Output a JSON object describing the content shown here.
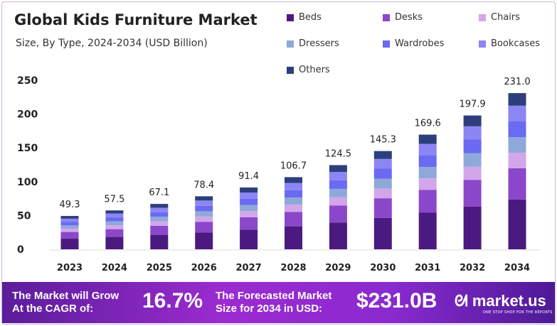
{
  "chart_data": {
    "type": "bar",
    "stacked": true,
    "title": "Global Kids Furniture Market",
    "subtitle": "Size, By Type, 2024-2034 (USD Billion)",
    "categories": [
      "2023",
      "2024",
      "2025",
      "2026",
      "2027",
      "2028",
      "2029",
      "2030",
      "2031",
      "2032",
      "2034"
    ],
    "totals": [
      "49.3",
      "57.5",
      "67.1",
      "78.4",
      "91.4",
      "106.7",
      "124.5",
      "145.3",
      "169.6",
      "197.9",
      "231.0"
    ],
    "ylim": [
      0,
      250
    ],
    "yticks": [
      0,
      50,
      100,
      150,
      200,
      250
    ],
    "grid": false,
    "legend_position": "top-right",
    "series": [
      {
        "name": "Beds",
        "color": "#4b1a80",
        "values": [
          15.7,
          18.3,
          21.4,
          25.0,
          29.2,
          34.0,
          39.7,
          46.4,
          54.1,
          63.1,
          73.7
        ]
      },
      {
        "name": "Desks",
        "color": "#8b47c9",
        "values": [
          9.9,
          11.5,
          13.4,
          15.7,
          18.3,
          21.3,
          24.9,
          29.1,
          33.9,
          39.6,
          46.2
        ]
      },
      {
        "name": "Chairs",
        "color": "#d3a6ea",
        "values": [
          4.9,
          5.7,
          6.6,
          7.8,
          9.0,
          10.6,
          12.3,
          14.4,
          16.8,
          19.6,
          22.9
        ]
      },
      {
        "name": "Dressers",
        "color": "#8ea9d9",
        "values": [
          4.9,
          5.8,
          6.7,
          7.8,
          9.1,
          10.7,
          12.5,
          14.5,
          17.0,
          19.8,
          23.1
        ]
      },
      {
        "name": "Wardrobes",
        "color": "#6a6af2",
        "values": [
          5.0,
          5.9,
          6.8,
          8.0,
          9.3,
          10.9,
          12.7,
          14.8,
          17.3,
          20.2,
          23.6
        ]
      },
      {
        "name": "Bookcases",
        "color": "#8b86f3",
        "values": [
          4.9,
          5.7,
          6.6,
          7.8,
          9.0,
          10.6,
          12.3,
          14.4,
          16.8,
          19.6,
          22.9
        ]
      },
      {
        "name": "Others",
        "color": "#2c3f7c",
        "values": [
          4.0,
          4.6,
          5.6,
          6.3,
          7.5,
          8.6,
          10.1,
          11.7,
          13.7,
          16.0,
          18.6
        ]
      }
    ]
  },
  "banner": {
    "cagr_label_1": "The Market will Grow",
    "cagr_label_2": "At the CAGR of:",
    "cagr_value": "16.7%",
    "forecast_label_1": "The Forecasted Market",
    "forecast_label_2": "Size for 2034 in USD:",
    "forecast_value": "$231.0B",
    "logo": "market.us",
    "tagline": "ONE STOP SHOP FOR THE REPORTS"
  }
}
